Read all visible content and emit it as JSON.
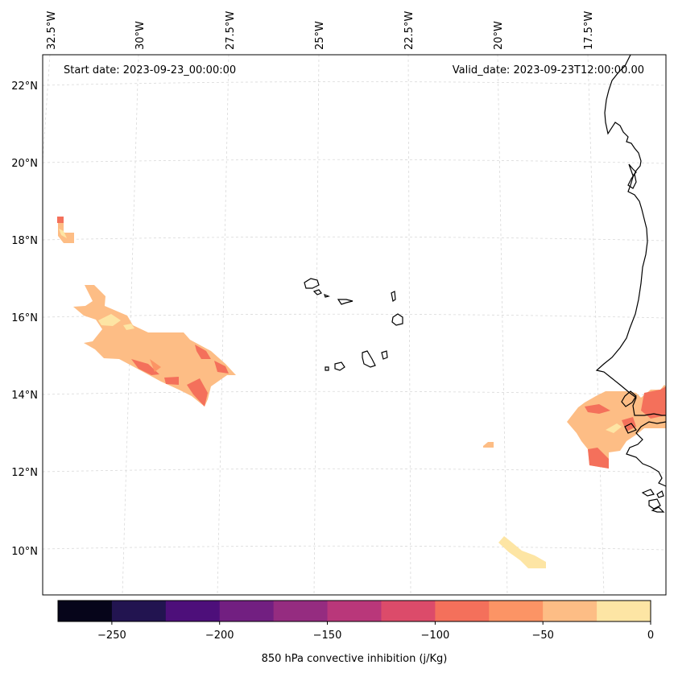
{
  "map": {
    "start_date": "Start date: 2023-09-23_00:00:00",
    "valid_date": "Valid_date: 2023-09-23T12:00:00.00",
    "lon_labels": [
      "32.5°W",
      "30°W",
      "27.5°W",
      "25°W",
      "22.5°W",
      "20°W",
      "17.5°W"
    ],
    "lat_labels": [
      "22°N",
      "20°N",
      "18°N",
      "16°N",
      "14°N",
      "12°N",
      "10°N"
    ],
    "colors": {
      "coast": "#000000",
      "grid": "#d9d9d9",
      "cin_light": "#fde5a4",
      "cin_mid": "#fdbd85",
      "cin_orange": "#fc9465",
      "cin_red": "#f4705b"
    }
  },
  "colorbar": {
    "title": "850 hPa convective inhibition (j/Kg)",
    "tick_labels": [
      "−250",
      "−200",
      "−150",
      "−100",
      "−50",
      "0"
    ],
    "bands": [
      "#06051a",
      "#221450",
      "#4d0f7a",
      "#721f81",
      "#952c80",
      "#b9377a",
      "#dc4b6a",
      "#f4705b",
      "#fc9465",
      "#fdbd85",
      "#fde5a4"
    ]
  }
}
